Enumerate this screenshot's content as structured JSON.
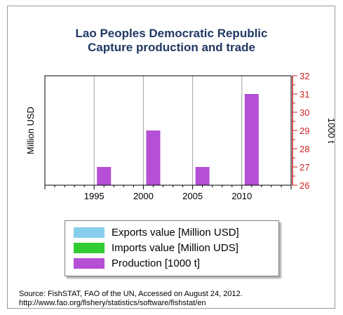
{
  "chart_data": {
    "type": "bar",
    "title": [
      "Lao Peoples Democratic Republic",
      "Capture production and trade"
    ],
    "ylabel_left": "Million USD",
    "ylabel_right": "1000 t",
    "x_ticks": [
      1995,
      2000,
      2005,
      2010
    ],
    "xlim": [
      1990,
      2015
    ],
    "y2lim": [
      26,
      32
    ],
    "y2_ticks": [
      26,
      27,
      28,
      29,
      30,
      31,
      32
    ],
    "grid": "vertical",
    "series": [
      {
        "name": "Exports value [Million USD]",
        "color": "#87ceeb",
        "axis": "left",
        "x": [],
        "values": []
      },
      {
        "name": "Imports value [Million UDS]",
        "color": "#32cd32",
        "axis": "left",
        "x": [],
        "values": []
      },
      {
        "name": "Production [1000 t]",
        "color": "#b44fd6",
        "axis": "right",
        "x": [
          1996,
          2001,
          2006,
          2011
        ],
        "values": [
          27,
          29,
          27,
          31
        ]
      }
    ],
    "legend": "bottom"
  },
  "source": {
    "line1": "Source: FishSTAT, FAO of the UN, Accessed on August 24, 2012.",
    "line2": "http://www.fao.org/fishery/statistics/software/fishstat/en"
  }
}
